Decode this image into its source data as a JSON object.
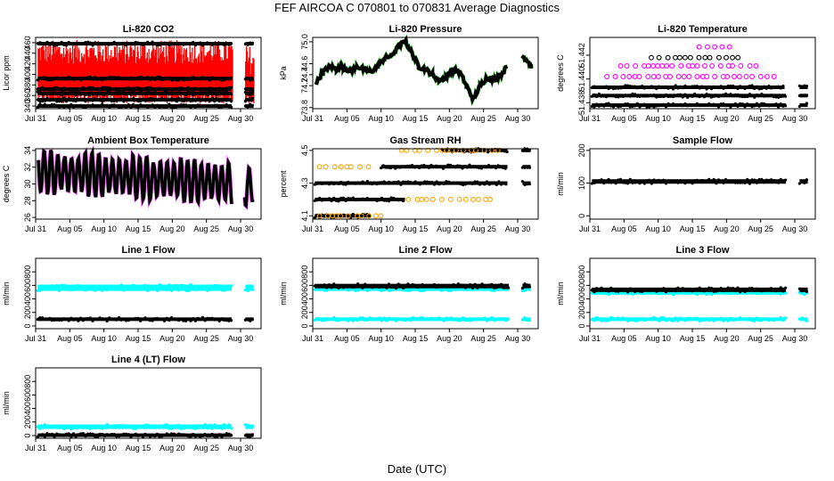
{
  "page": {
    "title": "FEF   AIRCOA C   070801 to 070831   Average Diagnostics",
    "xlabel": "Date (UTC)"
  },
  "colors": {
    "black": "#000000",
    "red": "#ff0000",
    "magenta": "#ff00ff",
    "orange": "#ffa500",
    "cyan": "#00ffff",
    "green": "#00cc00"
  },
  "x_ticks": [
    "Jul 31",
    "Aug 05",
    "Aug 10",
    "Aug 15",
    "Aug 20",
    "Aug 25",
    "Aug 30"
  ],
  "chart_data": [
    {
      "type": "scatter",
      "title": "Li-820 CO2",
      "ylabel": "Licor ppm",
      "xlim": [
        0,
        33
      ],
      "ylim": [
        335,
        470
      ],
      "yticks": [
        "340",
        "360",
        "380",
        "400",
        "420",
        "440",
        "460"
      ],
      "gaps": [
        [
          28.8,
          30.6
        ]
      ],
      "series": [
        {
          "name": "sample",
          "color": "red",
          "kind": "co2"
        },
        {
          "name": "ref-340",
          "color": "black",
          "kind": "flat",
          "level": 340
        },
        {
          "name": "ref-352",
          "color": "black",
          "kind": "flat",
          "level": 352
        },
        {
          "name": "ref-364",
          "color": "black",
          "kind": "flat",
          "level": 364
        },
        {
          "name": "ref-372",
          "color": "black",
          "kind": "flat",
          "level": 372
        },
        {
          "name": "ref-392",
          "color": "black",
          "kind": "flat",
          "level": 392
        },
        {
          "name": "ref-458",
          "color": "black",
          "kind": "flat",
          "level": 458
        }
      ]
    },
    {
      "type": "line",
      "title": "Li-820 Pressure",
      "ylabel": "kPa",
      "xlim": [
        0,
        33
      ],
      "ylim": [
        73.78,
        75.08
      ],
      "yticks": [
        "73.8",
        "74.2",
        "74.4",
        "74.6",
        "75.0"
      ],
      "gaps": [
        [
          28.8,
          30.6
        ]
      ],
      "series": [
        {
          "name": "pressure",
          "color": "black",
          "kind": "path",
          "points": [
            [
              0.5,
              74.25
            ],
            [
              1.5,
              74.45
            ],
            [
              2.5,
              74.55
            ],
            [
              3.5,
              74.5
            ],
            [
              4.5,
              74.55
            ],
            [
              5.5,
              74.45
            ],
            [
              6.5,
              74.55
            ],
            [
              7.5,
              74.5
            ],
            [
              8.5,
              74.45
            ],
            [
              9.5,
              74.55
            ],
            [
              10.5,
              74.7
            ],
            [
              11.5,
              74.75
            ],
            [
              12.5,
              74.9
            ],
            [
              13.5,
              75.02
            ],
            [
              14.5,
              74.8
            ],
            [
              15.5,
              74.55
            ],
            [
              16.5,
              74.5
            ],
            [
              17.5,
              74.4
            ],
            [
              18.5,
              74.3
            ],
            [
              19.5,
              74.35
            ],
            [
              20.5,
              74.5
            ],
            [
              21.5,
              74.45
            ],
            [
              22.5,
              74.2
            ],
            [
              23.5,
              73.95
            ],
            [
              24.5,
              74.2
            ],
            [
              25.5,
              74.35
            ],
            [
              26.5,
              74.3
            ],
            [
              27.5,
              74.4
            ],
            [
              28.5,
              74.55
            ],
            [
              30.6,
              74.75
            ],
            [
              31.5,
              74.65
            ],
            [
              32.0,
              74.55
            ]
          ]
        }
      ]
    },
    {
      "type": "scatter",
      "title": "Li-820 Temperature",
      "ylabel": "degrees C",
      "xlim": [
        0,
        33
      ],
      "ylim": [
        51.4375,
        51.4435
      ],
      "yticks": [
        "51.438",
        "51.440",
        "51.442"
      ],
      "gaps": [
        [
          28.8,
          30.6
        ]
      ],
      "series": [
        {
          "name": "temp-base",
          "color": "black",
          "kind": "flat",
          "level": 51.4378
        },
        {
          "name": "temp-1",
          "color": "black",
          "kind": "flat",
          "level": 51.4386
        },
        {
          "name": "temp-2",
          "color": "black",
          "kind": "flat",
          "level": 51.4393,
          "x_range": [
            0.3,
            28.5
          ]
        },
        {
          "name": "temp-3",
          "color": "magenta",
          "kind": "sparse",
          "level": 51.4402,
          "x_range": [
            2.5,
            27.0
          ]
        },
        {
          "name": "temp-4",
          "color": "magenta",
          "kind": "sparse",
          "level": 51.4411,
          "x_range": [
            4.5,
            24.5
          ]
        },
        {
          "name": "temp-5",
          "color": "black",
          "kind": "sparse",
          "level": 51.4418,
          "x_range": [
            9.0,
            22.0
          ]
        },
        {
          "name": "temp-6",
          "color": "magenta",
          "kind": "sparse",
          "level": 51.4427,
          "x_range": [
            16.0,
            20.5
          ]
        }
      ]
    },
    {
      "type": "line",
      "title": "Ambient Box Temperature",
      "ylabel": "degrees C",
      "xlim": [
        0,
        33
      ],
      "ylim": [
        25.8,
        34.2
      ],
      "yticks": [
        "26",
        "28",
        "30",
        "32",
        "34"
      ],
      "gaps": [
        [
          28.8,
          30.6
        ]
      ],
      "series": [
        {
          "name": "box-temp",
          "color": "black",
          "kind": "diurnal"
        }
      ]
    },
    {
      "type": "scatter",
      "title": "Gas Stream RH",
      "ylabel": "percent",
      "xlim": [
        0,
        33
      ],
      "ylim": [
        4.08,
        4.51
      ],
      "yticks": [
        "4.1",
        "4.3",
        "4.5"
      ],
      "gaps": [
        [
          28.8,
          30.6
        ]
      ],
      "series": [
        {
          "name": "rh-4.10",
          "color": "black",
          "kind": "flat",
          "level": 4.1,
          "x_range": [
            0.3,
            8.5
          ]
        },
        {
          "name": "rh-4.20",
          "color": "black",
          "kind": "flat",
          "level": 4.2,
          "x_range": [
            0.3,
            13.5
          ]
        },
        {
          "name": "rh-4.30",
          "color": "black",
          "kind": "flat",
          "level": 4.3,
          "x_range": [
            0.3,
            28.5
          ]
        },
        {
          "name": "rh-4.40",
          "color": "black",
          "kind": "flat",
          "level": 4.4,
          "x_range": [
            10.0,
            28.5
          ]
        },
        {
          "name": "rh-4.50",
          "color": "black",
          "kind": "flat",
          "level": 4.5,
          "x_range": [
            19.0,
            28.5
          ]
        },
        {
          "name": "rh-or-1",
          "color": "orange",
          "kind": "sparse",
          "level": 4.4,
          "x_range": [
            1.0,
            9.0
          ]
        },
        {
          "name": "rh-or-2",
          "color": "orange",
          "kind": "sparse",
          "level": 4.1,
          "x_range": [
            1.0,
            10.5
          ]
        },
        {
          "name": "rh-or-3",
          "color": "orange",
          "kind": "sparse",
          "level": 4.5,
          "x_range": [
            13.0,
            28.0
          ]
        },
        {
          "name": "rh-or-4",
          "color": "orange",
          "kind": "sparse",
          "level": 4.2,
          "x_range": [
            14.0,
            26.0
          ]
        }
      ]
    },
    {
      "type": "scatter",
      "title": "Sample Flow",
      "ylabel": "ml/min",
      "xlim": [
        0,
        33
      ],
      "ylim": [
        -10,
        205
      ],
      "yticks": [
        "0",
        "100",
        "200"
      ],
      "gaps": [
        [
          28.8,
          30.6
        ]
      ],
      "series": [
        {
          "name": "sample-flow",
          "color": "black",
          "kind": "flat",
          "level": 105,
          "thick": 5
        }
      ]
    },
    {
      "type": "scatter",
      "title": "Line 1 Flow",
      "ylabel": "ml/min",
      "xlim": [
        0,
        33
      ],
      "ylim": [
        -40,
        1000
      ],
      "yticks": [
        "0",
        "200",
        "400",
        "600",
        "800"
      ],
      "gaps": [
        [
          28.8,
          30.6
        ]
      ],
      "series": [
        {
          "name": "line1-cyan",
          "color": "cyan",
          "kind": "flat",
          "level": 565,
          "thick": 7
        },
        {
          "name": "line1-black",
          "color": "black",
          "kind": "flat",
          "level": 100,
          "thick": 4
        }
      ]
    },
    {
      "type": "scatter",
      "title": "Line 2 Flow",
      "ylabel": "ml/min",
      "xlim": [
        0,
        33
      ],
      "ylim": [
        -40,
        1000
      ],
      "yticks": [
        "0",
        "200",
        "400",
        "600",
        "800"
      ],
      "gaps": [
        [
          28.8,
          30.6
        ]
      ],
      "series": [
        {
          "name": "line2-cyan-low",
          "color": "cyan",
          "kind": "flat",
          "level": 100,
          "thick": 4
        },
        {
          "name": "line2-cyan-high",
          "color": "cyan",
          "kind": "flat",
          "level": 545,
          "thick": 4
        },
        {
          "name": "line2-black",
          "color": "black",
          "kind": "flat",
          "level": 590,
          "thick": 5
        }
      ]
    },
    {
      "type": "scatter",
      "title": "Line 3 Flow",
      "ylabel": "ml/min",
      "xlim": [
        0,
        33
      ],
      "ylim": [
        -40,
        1000
      ],
      "yticks": [
        "0",
        "200",
        "400",
        "600",
        "800"
      ],
      "gaps": [
        [
          28.8,
          30.6
        ]
      ],
      "series": [
        {
          "name": "line3-cyan-low",
          "color": "cyan",
          "kind": "flat",
          "level": 100,
          "thick": 4
        },
        {
          "name": "line3-cyan-high",
          "color": "cyan",
          "kind": "flat",
          "level": 490,
          "thick": 4
        },
        {
          "name": "line3-black",
          "color": "black",
          "kind": "flat",
          "level": 535,
          "thick": 5
        }
      ]
    },
    {
      "type": "scatter",
      "title": "Line 4 (LT) Flow",
      "ylabel": "ml/min",
      "xlim": [
        0,
        33
      ],
      "ylim": [
        -40,
        1000
      ],
      "yticks": [
        "0",
        "200",
        "400",
        "600",
        "800"
      ],
      "gaps": [
        [
          28.8,
          30.6
        ]
      ],
      "series": [
        {
          "name": "line4-cyan",
          "color": "cyan",
          "kind": "flat",
          "level": 130,
          "thick": 5
        },
        {
          "name": "line4-black",
          "color": "black",
          "kind": "flat",
          "level": 5,
          "thick": 4
        }
      ]
    }
  ]
}
